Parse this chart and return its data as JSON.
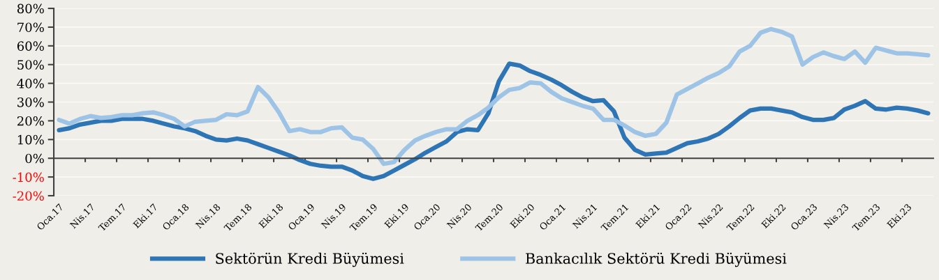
{
  "chart_data": {
    "type": "line",
    "categories": [
      "Oca.17",
      null,
      null,
      "Nis.17",
      null,
      null,
      "Tem.17",
      null,
      null,
      "Eki.17",
      null,
      null,
      "Oca.18",
      null,
      null,
      "Nis.18",
      null,
      null,
      "Tem.18",
      null,
      null,
      "Eki.18",
      null,
      null,
      "Oca.19",
      null,
      null,
      "Nis.19",
      null,
      null,
      "Tem.19",
      null,
      null,
      "Eki.19",
      null,
      null,
      "Oca.20",
      null,
      null,
      "Nis.20",
      null,
      null,
      "Tem.20",
      null,
      null,
      "Eki.20",
      null,
      null,
      "Oca.21",
      null,
      null,
      "Nis.21",
      null,
      null,
      "Tem.21",
      null,
      null,
      "Eki.21",
      null,
      null,
      "Oca.22",
      null,
      null,
      "Nis.22",
      null,
      null,
      "Tem.22",
      null,
      null,
      "Eki.22",
      null,
      null,
      "Oca.23",
      null,
      null,
      "Nis.23",
      null,
      null,
      "Tem.23",
      null,
      null,
      "Eki.23",
      null,
      null
    ],
    "series": [
      {
        "name": "Sektörün Kredi Büyümesi",
        "color": "#2e75b6",
        "values": [
          15,
          16,
          18,
          19,
          20,
          20,
          21,
          21,
          21,
          20,
          18.5,
          17,
          16,
          14.5,
          12,
          10,
          9.5,
          10.5,
          9.5,
          7.5,
          5.5,
          3.5,
          1.5,
          -1,
          -3,
          -4,
          -4.5,
          -4.5,
          -6.5,
          -9.5,
          -11,
          -9.5,
          -6.5,
          -3.5,
          -0.5,
          3,
          6,
          9,
          14,
          15.5,
          15,
          24,
          41,
          50.5,
          49.5,
          46.5,
          44.5,
          42,
          39,
          35.5,
          32.5,
          30.5,
          31,
          25,
          11,
          4.5,
          2,
          2.5,
          3,
          5.5,
          8,
          9,
          10.5,
          13,
          17,
          21.5,
          25.5,
          26.5,
          26.5,
          25.5,
          24.5,
          22,
          20.5,
          20.5,
          21.5,
          26,
          28,
          30.5,
          26.5,
          26,
          27,
          26.5,
          25.5,
          24
        ]
      },
      {
        "name": "Bankacılık Sektörü Kredi Büyümesi",
        "color": "#9dc3e6",
        "values": [
          20.5,
          18.5,
          21,
          22.5,
          21.5,
          22,
          23,
          23,
          24,
          24.5,
          23,
          21,
          17,
          19.5,
          20,
          20.5,
          23.5,
          23,
          25,
          38,
          32.5,
          24.5,
          14.5,
          15.5,
          14,
          14,
          16,
          16.5,
          11,
          10,
          5,
          -3,
          -2,
          4.5,
          9.5,
          12,
          14,
          15.5,
          15.5,
          20,
          23,
          27,
          32.5,
          36.5,
          37.5,
          40.5,
          40,
          35.5,
          32,
          30,
          28,
          26.5,
          20.5,
          20.5,
          17.5,
          14,
          12,
          13,
          19,
          34,
          37,
          40,
          43,
          45.5,
          49,
          57,
          60,
          67,
          69,
          67.5,
          65,
          50,
          54,
          56.5,
          54.5,
          53,
          57,
          51,
          59,
          57.5,
          56,
          56,
          55.5,
          55
        ]
      }
    ],
    "ylim": [
      -20,
      80
    ],
    "yticks": [
      {
        "value": -20,
        "label": "-20%"
      },
      {
        "value": -10,
        "label": "-10%"
      },
      {
        "value": 0,
        "label": "0%"
      },
      {
        "value": 10,
        "label": "10%"
      },
      {
        "value": 20,
        "label": "20%"
      },
      {
        "value": 30,
        "label": "30%"
      },
      {
        "value": 40,
        "label": "40%"
      },
      {
        "value": 50,
        "label": "50%"
      },
      {
        "value": 60,
        "label": "60%"
      },
      {
        "value": 70,
        "label": "70%"
      },
      {
        "value": 80,
        "label": "80%"
      }
    ],
    "grid": "y",
    "legend": "bottom",
    "marker": "none",
    "line_style": "solid"
  }
}
